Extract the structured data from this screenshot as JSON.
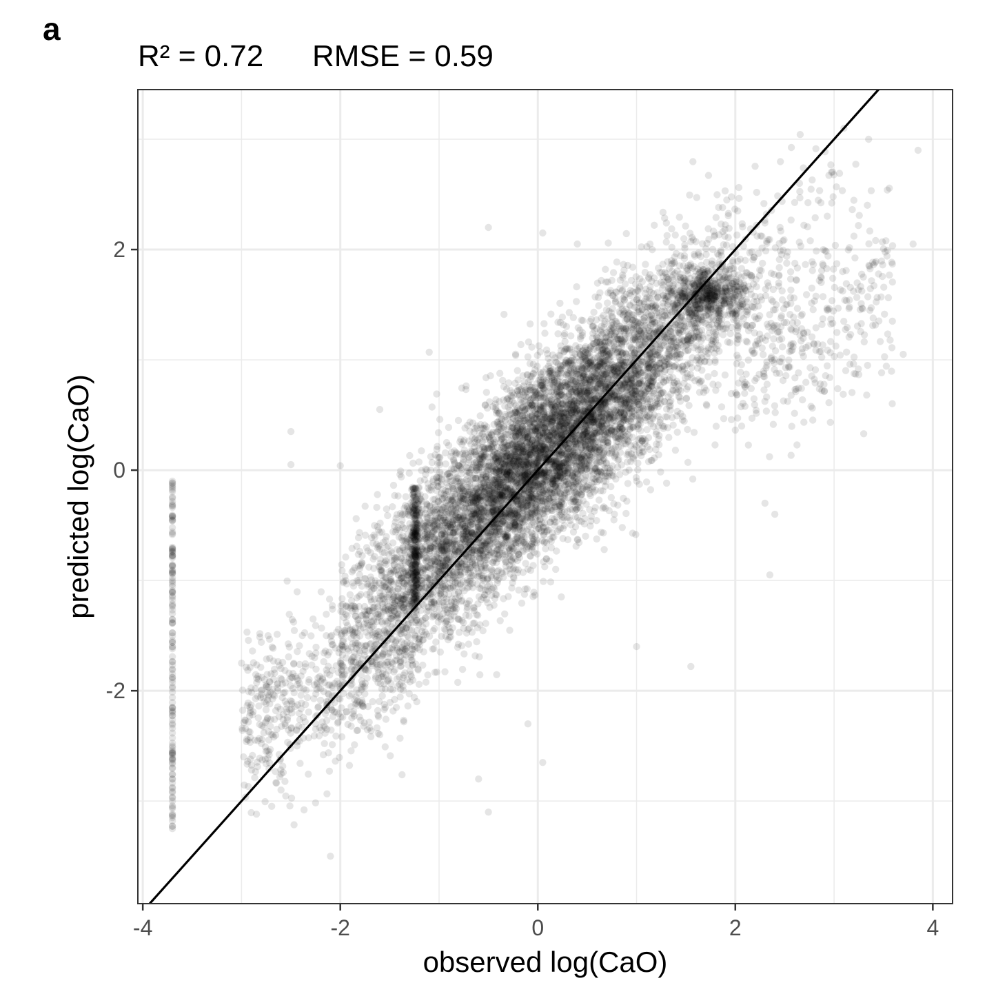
{
  "panel_label": "a",
  "stats": {
    "r2": "R² = 0.72",
    "rmse": "RMSE = 0.59"
  },
  "chart_data": {
    "type": "scatter",
    "title": "",
    "xlabel": "observed log(CaO)",
    "ylabel": "predicted log(CaO)",
    "xlim": [
      -4.05,
      4.2
    ],
    "ylim": [
      -3.93,
      3.45
    ],
    "x_ticks": [
      -4,
      -2,
      0,
      2,
      4
    ],
    "x_tick_labels": [
      "-4",
      "-2",
      "0",
      "2",
      "4"
    ],
    "y_ticks": [
      -2,
      0,
      2
    ],
    "y_tick_labels": [
      "-2",
      "0",
      "2"
    ],
    "grid": true,
    "legend": "none",
    "point_color": "#000000",
    "point_opacity": 0.1,
    "reference_line": {
      "slope": 1,
      "intercept": 0,
      "color": "#000000"
    },
    "approx_point_count": 12000,
    "distribution": {
      "main_cloud": {
        "x_range": [
          -2.0,
          3.8
        ],
        "y_range": [
          -3.0,
          3.1
        ],
        "correlation": "strong positive along y = x, slope ~0.8"
      },
      "detection_limit_column_1": {
        "x": -3.7,
        "y_range": [
          -3.25,
          -0.1
        ]
      },
      "detection_limit_column_2": {
        "x": -1.24,
        "y_range": [
          -1.2,
          -0.15
        ]
      }
    },
    "sample_points": [
      [
        -3.7,
        -0.1
      ],
      [
        -3.7,
        -0.45
      ],
      [
        -3.7,
        -0.75
      ],
      [
        -3.7,
        -1.0
      ],
      [
        -3.7,
        -1.3
      ],
      [
        -3.7,
        -1.6
      ],
      [
        -3.7,
        -1.9
      ],
      [
        -3.7,
        -2.2
      ],
      [
        -3.7,
        -2.5
      ],
      [
        -3.7,
        -2.8
      ],
      [
        -3.7,
        -3.0
      ],
      [
        -3.7,
        -3.25
      ],
      [
        -2.5,
        0.35
      ],
      [
        -2.5,
        0.05
      ],
      [
        -2.0,
        0.04
      ],
      [
        -1.6,
        0.55
      ],
      [
        -1.1,
        1.07
      ],
      [
        -0.5,
        2.2
      ],
      [
        0.05,
        2.15
      ],
      [
        0.4,
        2.05
      ],
      [
        -0.6,
        -2.8
      ],
      [
        -0.5,
        -3.1
      ],
      [
        -2.1,
        -3.5
      ],
      [
        -0.1,
        -2.3
      ],
      [
        0.05,
        -2.65
      ],
      [
        1.55,
        -1.78
      ],
      [
        1.0,
        -1.6
      ],
      [
        2.35,
        -0.95
      ],
      [
        2.4,
        -0.4
      ],
      [
        2.3,
        -0.3
      ],
      [
        3.3,
        0.33
      ],
      [
        3.7,
        1.05
      ],
      [
        3.8,
        2.05
      ],
      [
        3.85,
        2.9
      ],
      [
        3.1,
        3.1
      ],
      [
        3.35,
        3.0
      ],
      [
        2.65,
        2.6
      ],
      [
        1.75,
        1.6
      ],
      [
        1.85,
        1.55
      ],
      [
        0.5,
        0.45
      ],
      [
        0.0,
        0.1
      ],
      [
        -0.5,
        -0.3
      ],
      [
        -1.0,
        -0.75
      ],
      [
        -1.5,
        -1.3
      ],
      [
        -2.0,
        -1.75
      ],
      [
        -2.8,
        -2.0
      ],
      [
        -3.0,
        -1.75
      ],
      [
        -2.6,
        -2.9
      ]
    ]
  }
}
